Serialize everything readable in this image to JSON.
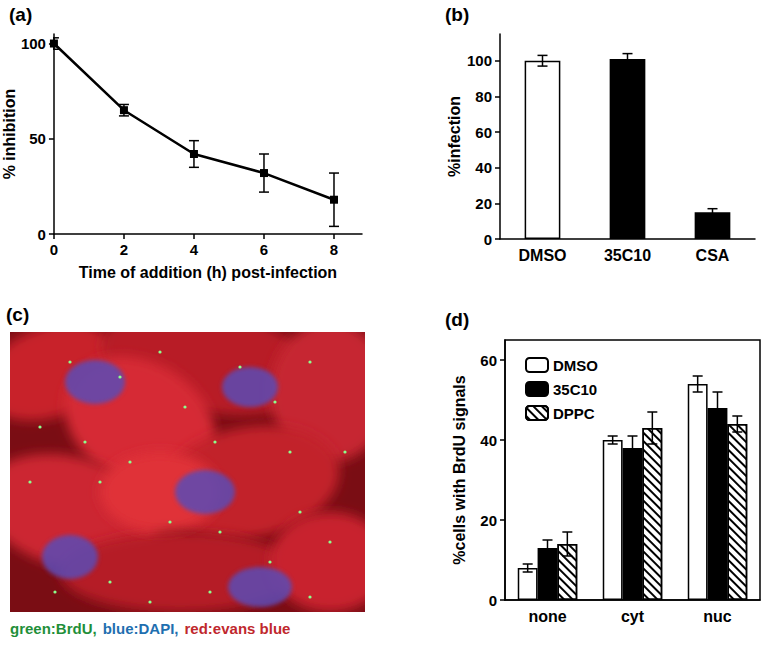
{
  "chart_data": [
    {
      "type": "line",
      "title": "(a)",
      "x_label": "Time of addition (h) post-infection",
      "y_label": "% inhibition",
      "x": [
        0,
        2,
        4,
        6,
        8
      ],
      "values": [
        100,
        65,
        42,
        32,
        18
      ],
      "error": [
        3,
        3,
        7,
        10,
        14
      ],
      "color": "#000000",
      "marker": "square",
      "xlim": [
        0,
        8.8
      ],
      "xticks": [
        0,
        2,
        4,
        6,
        8
      ],
      "ylim": [
        0,
        105
      ],
      "yticks": [
        0,
        50,
        100
      ],
      "grid": false
    },
    {
      "type": "bar",
      "title": "(b)",
      "y_label": "%infection",
      "categories": [
        "DMSO",
        "35C10",
        "CSA"
      ],
      "values": [
        100,
        101,
        15
      ],
      "error": [
        3,
        3,
        2
      ],
      "colors": [
        "#ffffff",
        "#000000",
        "#000000"
      ],
      "ylim": [
        0,
        115
      ],
      "yticks": [
        0,
        20,
        40,
        60,
        80,
        100
      ],
      "grid": false
    },
    {
      "type": "image",
      "title": "(c)",
      "annotations": [
        {
          "text": "green:BrdU,",
          "color": "#1f8f3a"
        },
        {
          "text": "blue:DAPI,",
          "color": "#1f6fb0"
        },
        {
          "text": "red:evans blue",
          "color": "#c0282d"
        }
      ]
    },
    {
      "type": "bar",
      "title": "(d)",
      "y_label": "%cells with BrdU signals",
      "categories": [
        "none",
        "cyt",
        "nuc"
      ],
      "series": [
        {
          "name": "DMSO",
          "color": "#ffffff",
          "values": [
            8,
            40,
            54
          ],
          "error": [
            1,
            1,
            2
          ]
        },
        {
          "name": "35C10",
          "color": "#000000",
          "values": [
            13,
            38,
            48
          ],
          "error": [
            2,
            3,
            4
          ]
        },
        {
          "name": "DPPC",
          "color": "#ffffff",
          "marker": "cross",
          "values": [
            14,
            43,
            44
          ],
          "error": [
            3,
            4,
            2
          ]
        }
      ],
      "ylim": [
        0,
        65
      ],
      "yticks": [
        0,
        20,
        40,
        60
      ],
      "legend": "upper left",
      "grid": false
    }
  ]
}
